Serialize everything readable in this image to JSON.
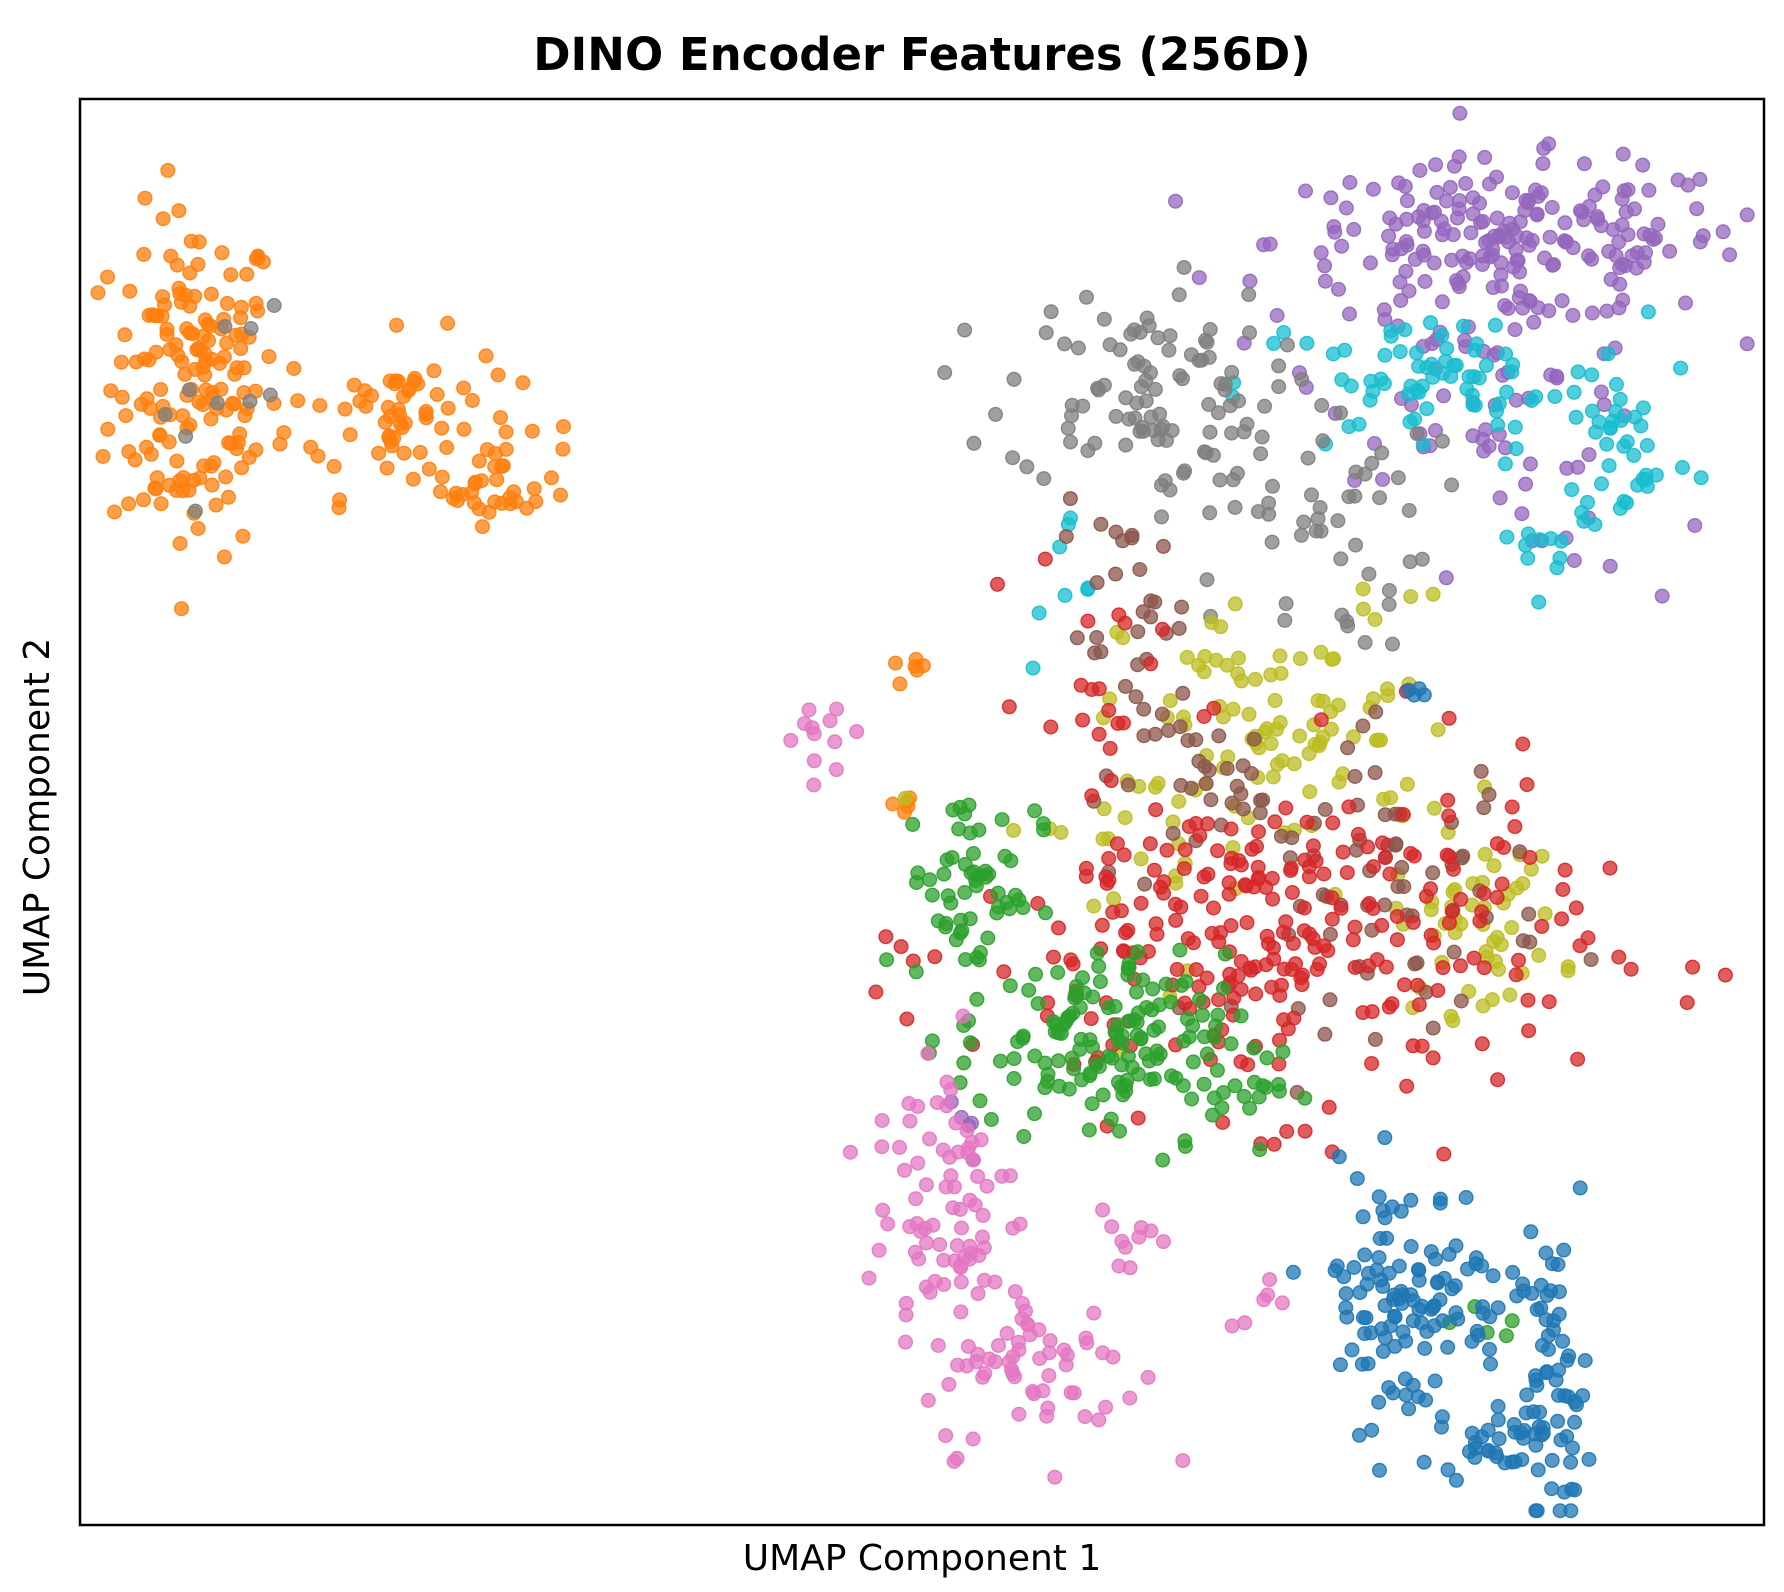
{
  "chart_data": {
    "type": "scatter",
    "title": "DINO Encoder Features (256D)",
    "xlabel": "UMAP Component 1",
    "ylabel": "UMAP Component 2",
    "xlim": [
      0,
      100
    ],
    "ylim": [
      0,
      100
    ],
    "ticks": "none",
    "grid": false,
    "legend": "none",
    "marker_alpha": 0.75,
    "series": [
      {
        "color": "#ff7f0e",
        "clusters": [
          {
            "center": [
              6.8,
              80.0
            ],
            "spread": [
              2.5,
              6.0
            ],
            "count": 160
          },
          {
            "center": [
              19.0,
              77.8
            ],
            "spread": [
              3.5,
              2.8
            ],
            "count": 70
          },
          {
            "center": [
              25.0,
              73.0
            ],
            "spread": [
              1.8,
              1.4
            ],
            "count": 30
          },
          {
            "center": [
              49.2,
              60.0
            ],
            "spread": [
              0.5,
              0.3
            ],
            "count": 6
          },
          {
            "center": [
              49.0,
              50.6
            ],
            "spread": [
              0.7,
              0.5
            ],
            "count": 5
          }
        ]
      },
      {
        "color": "#9467bd",
        "clusters": [
          {
            "center": [
              85.0,
              90.0
            ],
            "spread": [
              7.0,
              2.8
            ],
            "count": 200
          },
          {
            "center": [
              84.0,
              80.5
            ],
            "spread": [
              5.0,
              3.5
            ],
            "count": 60
          },
          {
            "center": [
              88.0,
              68.5
            ],
            "spread": [
              2.5,
              2.0
            ],
            "count": 10
          },
          {
            "center": [
              51.0,
              27.0
            ],
            "spread": [
              1.5,
              2.5
            ],
            "count": 5
          }
        ]
      },
      {
        "color": "#17becf",
        "clusters": [
          {
            "center": [
              81.0,
              80.0
            ],
            "spread": [
              6.0,
              2.5
            ],
            "count": 80
          },
          {
            "center": [
              92.0,
              75.0
            ],
            "spread": [
              2.0,
              2.5
            ],
            "count": 30
          },
          {
            "center": [
              87.0,
              69.0
            ],
            "spread": [
              2.0,
              1.5
            ],
            "count": 12
          },
          {
            "center": [
              59.0,
              65.0
            ],
            "spread": [
              2.0,
              3.0
            ],
            "count": 8
          }
        ]
      },
      {
        "color": "#7f7f7f",
        "clusters": [
          {
            "center": [
              63.0,
              80.0
            ],
            "spread": [
              4.0,
              3.5
            ],
            "count": 90
          },
          {
            "center": [
              72.0,
              71.0
            ],
            "spread": [
              4.0,
              5.0
            ],
            "count": 60
          },
          {
            "center": [
              8.0,
              80.0
            ],
            "spread": [
              2.5,
              4.0
            ],
            "count": 10
          }
        ]
      },
      {
        "color": "#bcbd22",
        "clusters": [
          {
            "center": [
              72.0,
              56.0
            ],
            "spread": [
              5.0,
              4.5
            ],
            "count": 90
          },
          {
            "center": [
              83.0,
              42.0
            ],
            "spread": [
              2.5,
              3.0
            ],
            "count": 50
          },
          {
            "center": [
              64.0,
              49.0
            ],
            "spread": [
              5.0,
              5.0
            ],
            "count": 30
          }
        ]
      },
      {
        "color": "#8c564b",
        "clusters": [
          {
            "center": [
              62.0,
              63.0
            ],
            "spread": [
              2.0,
              4.0
            ],
            "count": 30
          },
          {
            "center": [
              68.0,
              52.0
            ],
            "spread": [
              3.5,
              2.5
            ],
            "count": 30
          },
          {
            "center": [
              78.0,
              45.0
            ],
            "spread": [
              4.5,
              5.0
            ],
            "count": 70
          }
        ]
      },
      {
        "color": "#d62728",
        "clusters": [
          {
            "center": [
              71.0,
              41.0
            ],
            "spread": [
              9.0,
              6.0
            ],
            "count": 280
          },
          {
            "center": [
              60.5,
              61.5
            ],
            "spread": [
              2.0,
              3.5
            ],
            "count": 15
          }
        ]
      },
      {
        "color": "#2ca02c",
        "clusters": [
          {
            "center": [
              53.0,
              45.0
            ],
            "spread": [
              2.0,
              3.5
            ],
            "count": 60
          },
          {
            "center": [
              60.0,
              34.0
            ],
            "spread": [
              4.0,
              3.0
            ],
            "count": 120
          },
          {
            "center": [
              66.0,
              31.0
            ],
            "spread": [
              3.0,
              2.5
            ],
            "count": 40
          },
          {
            "center": [
              83.5,
              15.0
            ],
            "spread": [
              1.5,
              2.0
            ],
            "count": 5
          }
        ]
      },
      {
        "color": "#e377c2",
        "clusters": [
          {
            "center": [
              44.0,
              55.5
            ],
            "spread": [
              1.2,
              1.5
            ],
            "count": 12
          },
          {
            "center": [
              51.5,
              23.0
            ],
            "spread": [
              2.2,
              6.0
            ],
            "count": 80
          },
          {
            "center": [
              57.0,
              11.0
            ],
            "spread": [
              3.0,
              3.0
            ],
            "count": 60
          },
          {
            "center": [
              62.0,
              20.5
            ],
            "spread": [
              1.5,
              1.5
            ],
            "count": 10
          },
          {
            "center": [
              70.5,
              15.5
            ],
            "spread": [
              1.2,
              1.0
            ],
            "count": 6
          }
        ]
      },
      {
        "color": "#1f77b4",
        "clusters": [
          {
            "center": [
              79.0,
              16.0
            ],
            "spread": [
              3.0,
              4.5
            ],
            "count": 120
          },
          {
            "center": [
              84.0,
              6.0
            ],
            "spread": [
              1.5,
              1.2
            ],
            "count": 30
          },
          {
            "center": [
              87.5,
              10.0
            ],
            "spread": [
              1.0,
              5.0
            ],
            "count": 60
          },
          {
            "center": [
              79.5,
              58.5
            ],
            "spread": [
              0.6,
              0.5
            ],
            "count": 4
          }
        ]
      }
    ]
  }
}
